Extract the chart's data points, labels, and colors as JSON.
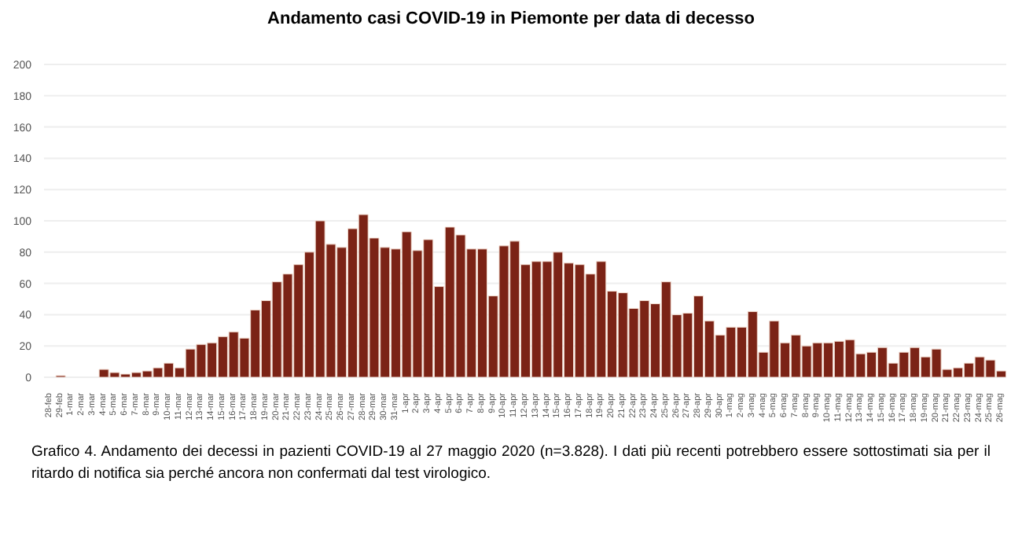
{
  "chart_data": {
    "type": "bar",
    "title": "Andamento casi COVID-19 in Piemonte per data di decesso",
    "categories": [
      "28-feb",
      "29-feb",
      "1-mar",
      "2-mar",
      "3-mar",
      "4-mar",
      "5-mar",
      "6-mar",
      "7-mar",
      "8-mar",
      "9-mar",
      "10-mar",
      "11-mar",
      "12-mar",
      "13-mar",
      "14-mar",
      "15-mar",
      "16-mar",
      "17-mar",
      "18-mar",
      "19-mar",
      "20-mar",
      "21-mar",
      "22-mar",
      "23-mar",
      "24-mar",
      "25-mar",
      "26-mar",
      "27-mar",
      "28-mar",
      "29-mar",
      "30-mar",
      "31-mar",
      "1-apr",
      "2-apr",
      "3-apr",
      "4-apr",
      "5-apr",
      "6-apr",
      "7-apr",
      "8-apr",
      "9-apr",
      "10-apr",
      "11-apr",
      "12-apr",
      "13-apr",
      "14-apr",
      "15-apr",
      "16-apr",
      "17-apr",
      "18-apr",
      "19-apr",
      "20-apr",
      "21-apr",
      "22-apr",
      "23-apr",
      "24-apr",
      "25-apr",
      "26-apr",
      "27-apr",
      "28-apr",
      "29-apr",
      "30-apr",
      "1-mag",
      "2-mag",
      "3-mag",
      "4-mag",
      "5-mag",
      "6-mag",
      "7-mag",
      "8-mag",
      "9-mag",
      "10-mag",
      "11-mag",
      "12-mag",
      "13-mag",
      "14-mag",
      "15-mag",
      "16-mag",
      "17-mag",
      "18-mag",
      "19-mag",
      "20-mag",
      "21-mag",
      "22-mag",
      "23-mag",
      "24-mag",
      "25-mag",
      "26-mag"
    ],
    "values": [
      0,
      1,
      0,
      0,
      0,
      5,
      3,
      2,
      3,
      4,
      6,
      9,
      6,
      18,
      21,
      22,
      26,
      29,
      25,
      43,
      49,
      61,
      66,
      72,
      80,
      100,
      85,
      83,
      95,
      104,
      89,
      83,
      82,
      93,
      81,
      88,
      58,
      96,
      91,
      82,
      82,
      52,
      84,
      87,
      72,
      74,
      74,
      80,
      73,
      72,
      66,
      74,
      55,
      54,
      44,
      49,
      47,
      61,
      40,
      41,
      52,
      36,
      27,
      32,
      32,
      42,
      16,
      36,
      22,
      27,
      20,
      22,
      22,
      23,
      24,
      15,
      16,
      19,
      9,
      16,
      19,
      13,
      18,
      5,
      6,
      9,
      13,
      11,
      4
    ],
    "color": "#7b2316",
    "ylim": [
      0,
      200
    ],
    "yticks": [
      0,
      20,
      40,
      60,
      80,
      100,
      120,
      140,
      160,
      180,
      200
    ],
    "grid": "y",
    "annotations": [
      "Grafico 4. Andamento dei decessi in pazienti COVID-19 al 27 maggio 2020 (n=3.828). I dati più recenti potrebbero essere sottostimati sia per il ritardo di notifica sia perché ancora non confermati dal test virologico."
    ]
  }
}
